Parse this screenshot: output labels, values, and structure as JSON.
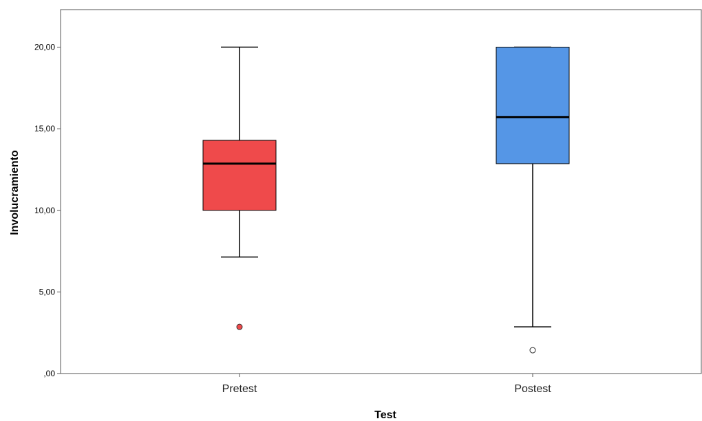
{
  "chart_data": {
    "type": "boxplot",
    "xlabel": "Test",
    "ylabel": "Involucramiento",
    "ylim": [
      0,
      22.3
    ],
    "y_ticks": [
      {
        "value": 0,
        "label": ",00"
      },
      {
        "value": 5,
        "label": "5,00"
      },
      {
        "value": 10,
        "label": "10,00"
      },
      {
        "value": 15,
        "label": "15,00"
      },
      {
        "value": 20,
        "label": "20,00"
      }
    ],
    "categories": [
      "Pretest",
      "Postest"
    ],
    "boxes": [
      {
        "category": "Pretest",
        "color": "#ef4a4b",
        "whisker_low": 7.14,
        "q1": 10.0,
        "median": 12.86,
        "q3": 14.29,
        "whisker_high": 20.0,
        "outliers": [
          2.86
        ]
      },
      {
        "category": "Postest",
        "color": "#5596e6",
        "whisker_low": 2.86,
        "q1": 12.86,
        "median": 15.71,
        "q3": 20.0,
        "whisker_high": 20.0,
        "outliers": [
          1.43
        ]
      }
    ],
    "grid": false,
    "legend": "none"
  }
}
